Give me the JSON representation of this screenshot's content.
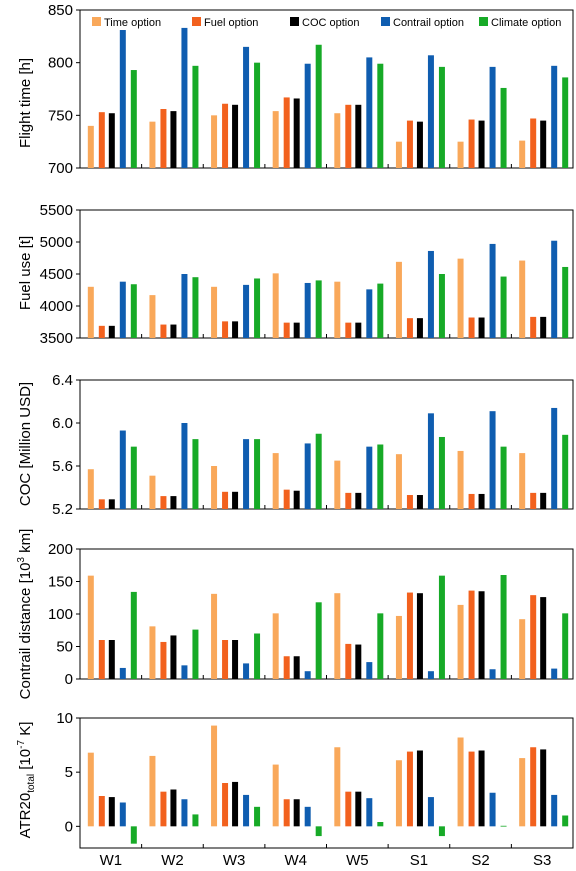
{
  "colors": {
    "time": "#F9A85A",
    "fuel": "#F2611E",
    "coc": "#000000",
    "contrail": "#0F5DB0",
    "climate": "#17AA27"
  },
  "chart_data": {
    "type": "bar",
    "categories": [
      "W1",
      "W2",
      "W3",
      "W4",
      "W5",
      "S1",
      "S2",
      "S3"
    ],
    "legend": [
      {
        "key": "time",
        "label": "Time option"
      },
      {
        "key": "fuel",
        "label": "Fuel option"
      },
      {
        "key": "coc",
        "label": "COC option"
      },
      {
        "key": "contrail",
        "label": "Contrail option"
      },
      {
        "key": "climate",
        "label": "Climate option"
      }
    ],
    "legend_position": "top",
    "grid": false,
    "panels": [
      {
        "id": "flight-time",
        "ylabel": "Flight time [h]",
        "ylim": [
          700,
          850
        ],
        "yticks": [
          "700",
          "750",
          "800",
          "850"
        ],
        "series": [
          {
            "key": "time",
            "values": [
              740,
              744,
              750,
              754,
              752,
              725,
              725,
              726
            ]
          },
          {
            "key": "fuel",
            "values": [
              753,
              756,
              761,
              767,
              760,
              745,
              746,
              747
            ]
          },
          {
            "key": "coc",
            "values": [
              752,
              754,
              760,
              766,
              760,
              744,
              745,
              745
            ]
          },
          {
            "key": "contrail",
            "values": [
              831,
              833,
              815,
              799,
              805,
              807,
              796,
              797
            ]
          },
          {
            "key": "climate",
            "values": [
              793,
              797,
              800,
              817,
              799,
              796,
              776,
              786
            ]
          }
        ]
      },
      {
        "id": "fuel-use",
        "ylabel": "Fuel use [t]",
        "ylim": [
          3500,
          5500
        ],
        "yticks": [
          "3500",
          "4000",
          "4500",
          "5000",
          "5500"
        ],
        "series": [
          {
            "key": "time",
            "values": [
              4300,
              4170,
              4300,
              4510,
              4380,
              4690,
              4740,
              4710
            ]
          },
          {
            "key": "fuel",
            "values": [
              3690,
              3710,
              3760,
              3740,
              3740,
              3810,
              3820,
              3830
            ]
          },
          {
            "key": "coc",
            "values": [
              3690,
              3710,
              3760,
              3740,
              3740,
              3810,
              3820,
              3830
            ]
          },
          {
            "key": "contrail",
            "values": [
              4380,
              4500,
              4330,
              4360,
              4260,
              4860,
              4970,
              5020
            ]
          },
          {
            "key": "climate",
            "values": [
              4340,
              4450,
              4430,
              4400,
              4350,
              4500,
              4460,
              4610
            ]
          }
        ]
      },
      {
        "id": "coc",
        "ylabel": "COC [Million USD]",
        "ylim": [
          5.2,
          6.4
        ],
        "yticks": [
          "5.2",
          "5.6",
          "6.0",
          "6.4"
        ],
        "series": [
          {
            "key": "time",
            "values": [
              5.57,
              5.51,
              5.6,
              5.72,
              5.65,
              5.71,
              5.74,
              5.72
            ]
          },
          {
            "key": "fuel",
            "values": [
              5.29,
              5.32,
              5.36,
              5.38,
              5.35,
              5.33,
              5.34,
              5.35
            ]
          },
          {
            "key": "coc",
            "values": [
              5.29,
              5.32,
              5.36,
              5.37,
              5.35,
              5.33,
              5.34,
              5.35
            ]
          },
          {
            "key": "contrail",
            "values": [
              5.93,
              6.0,
              5.85,
              5.81,
              5.78,
              6.09,
              6.11,
              6.14
            ]
          },
          {
            "key": "climate",
            "values": [
              5.78,
              5.85,
              5.85,
              5.9,
              5.8,
              5.87,
              5.78,
              5.89
            ]
          }
        ]
      },
      {
        "id": "contrail-distance",
        "ylabel_main": "Contrail distance [10",
        "ylabel_sup": "3",
        "ylabel_tail": " km]",
        "ylim": [
          0,
          200
        ],
        "yticks": [
          "0",
          "50",
          "100",
          "150",
          "200"
        ],
        "series": [
          {
            "key": "time",
            "values": [
              159,
              81,
              131,
              101,
              132,
              97,
              114,
              92
            ]
          },
          {
            "key": "fuel",
            "values": [
              60,
              57,
              60,
              35,
              54,
              133,
              136,
              129
            ]
          },
          {
            "key": "coc",
            "values": [
              60,
              67,
              60,
              35,
              53,
              132,
              135,
              126
            ]
          },
          {
            "key": "contrail",
            "values": [
              17,
              21,
              24,
              12,
              26,
              12,
              15,
              16
            ]
          },
          {
            "key": "climate",
            "values": [
              134,
              76,
              70,
              118,
              101,
              159,
              160,
              101
            ]
          }
        ]
      },
      {
        "id": "atr20",
        "ylabel_main": "ATR20",
        "ylabel_sub": "total",
        "ylabel_mid": " [10",
        "ylabel_sup": "-7",
        "ylabel_tail": " K]",
        "ylim": [
          -2,
          10
        ],
        "yticks": [
          "0",
          "5",
          "10"
        ],
        "series": [
          {
            "key": "time",
            "values": [
              6.8,
              6.5,
              9.3,
              5.7,
              7.3,
              6.1,
              8.2,
              6.3
            ]
          },
          {
            "key": "fuel",
            "values": [
              2.8,
              3.2,
              4.0,
              2.5,
              3.2,
              6.9,
              6.9,
              7.3
            ]
          },
          {
            "key": "coc",
            "values": [
              2.7,
              3.4,
              4.1,
              2.5,
              3.2,
              7.0,
              7.0,
              7.1
            ]
          },
          {
            "key": "contrail",
            "values": [
              2.2,
              2.5,
              2.9,
              1.8,
              2.6,
              2.7,
              3.1,
              2.9
            ]
          },
          {
            "key": "climate",
            "values": [
              -1.6,
              1.1,
              1.8,
              -0.9,
              0.4,
              -0.9,
              0.05,
              1.0
            ]
          }
        ]
      }
    ]
  }
}
